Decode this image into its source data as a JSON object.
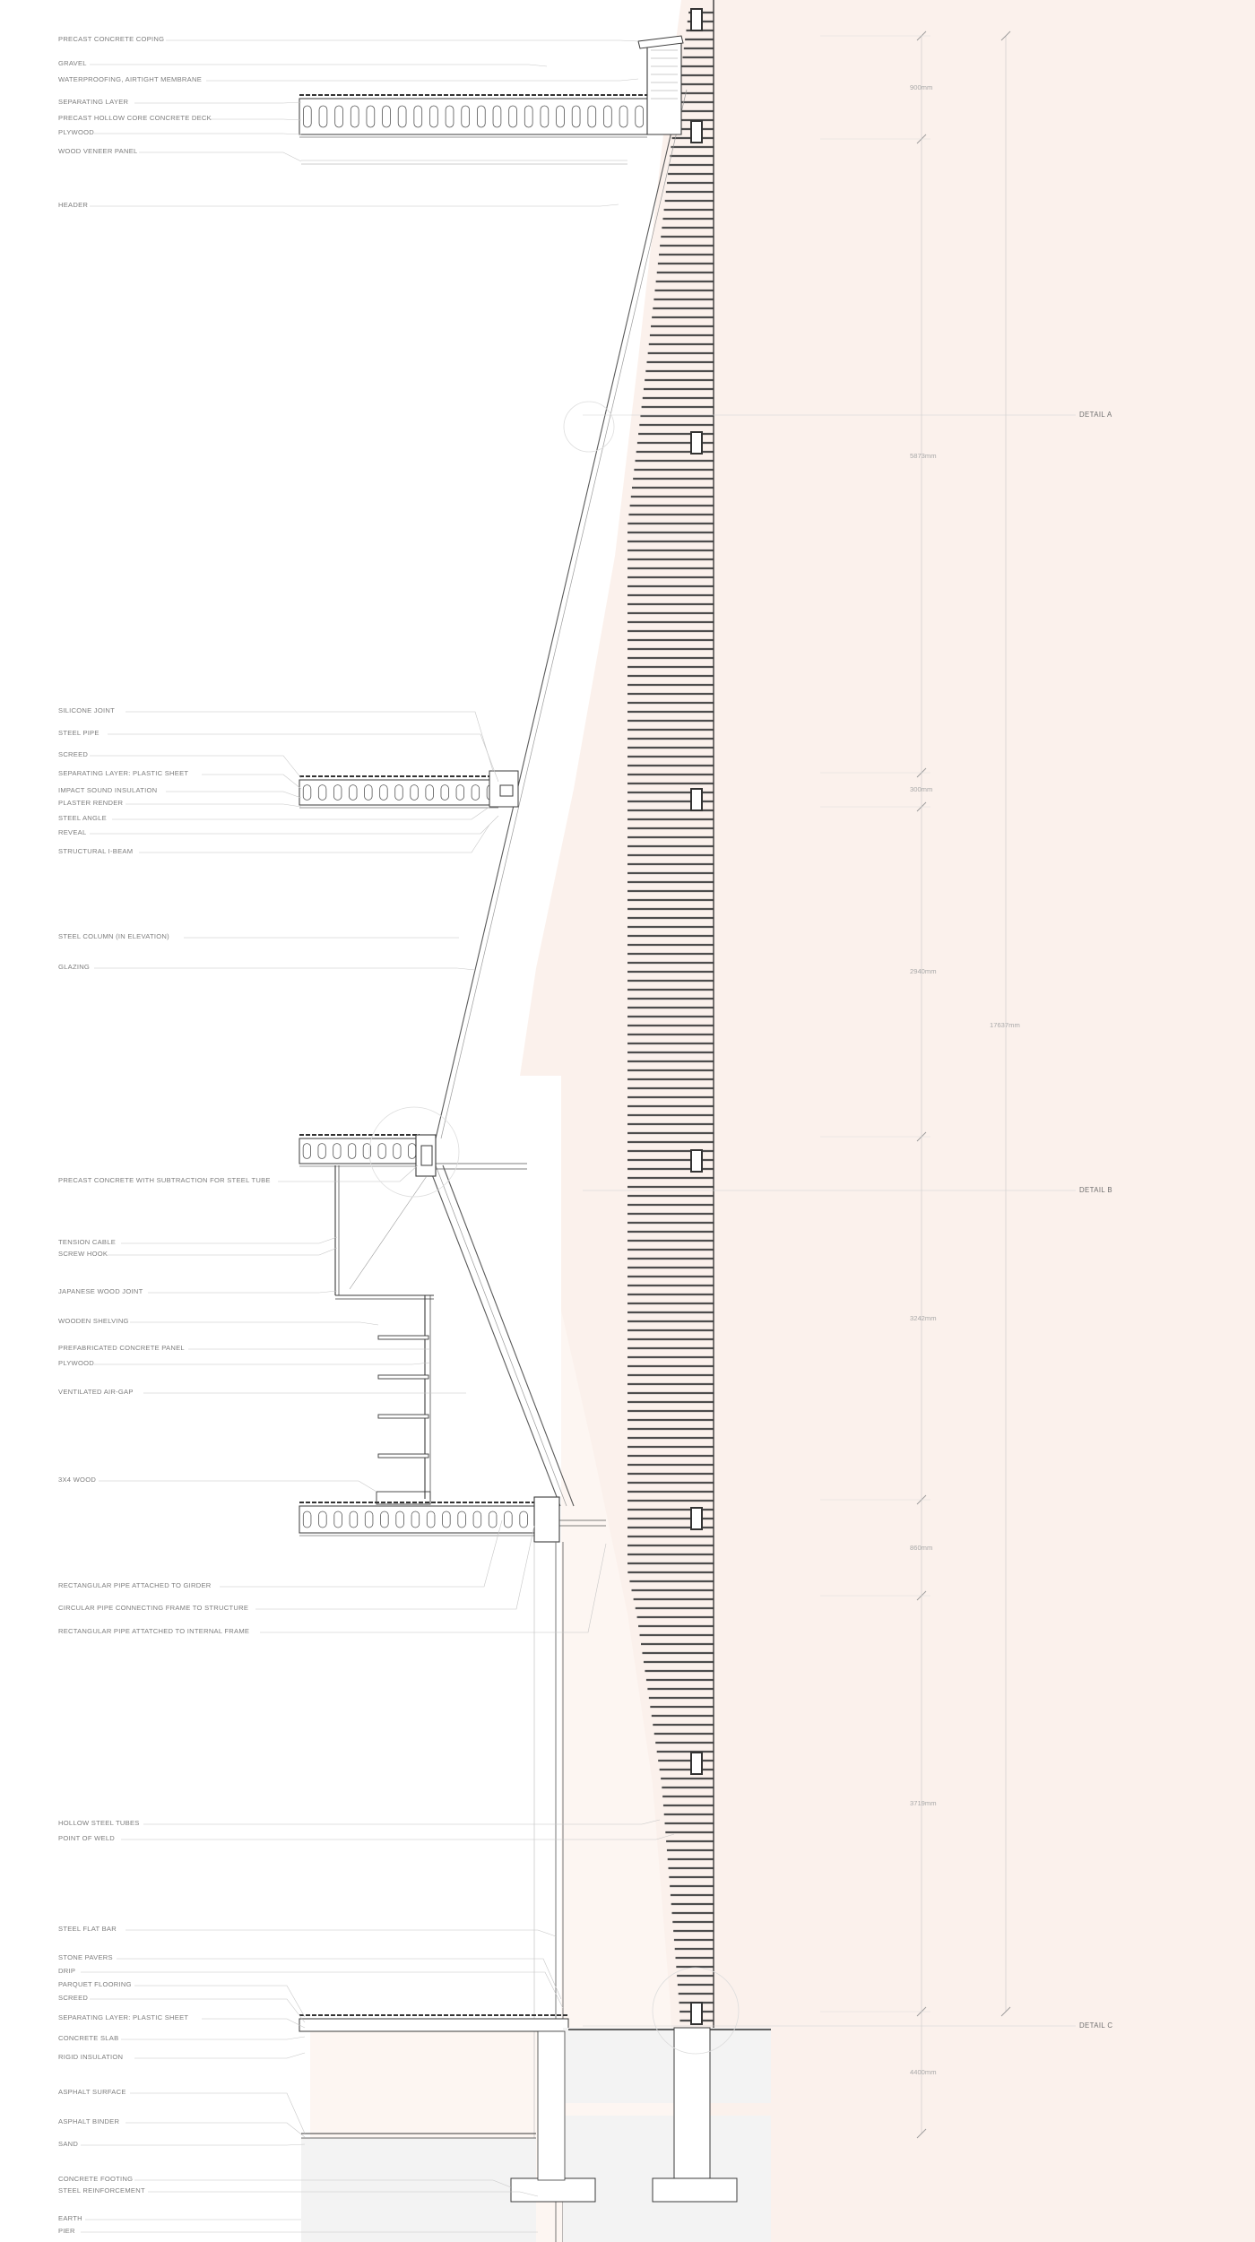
{
  "colors": {
    "facade_fill": "#fbf1ec",
    "line": "#3b3b3b",
    "leader": "#c6c6c6",
    "label_text": "#7d7d7d",
    "dimension_text": "#a9a9a9",
    "slat": "#4d4d4d"
  },
  "labels": [
    "PRECAST CONCRETE COPING",
    "GRAVEL",
    "WATERPROOFING, AIRTIGHT MEMBRANE",
    "SEPARATING LAYER",
    "PRECAST HOLLOW CORE CONCRETE DECK",
    "PLYWOOD",
    "WOOD VENEER PANEL",
    "HEADER",
    "SILICONE JOINT",
    "STEEL PIPE",
    "SCREED",
    "SEPARATING LAYER: PLASTIC SHEET",
    "IMPACT SOUND INSULATION",
    "PLASTER RENDER",
    "STEEL ANGLE",
    "REVEAL",
    "STRUCTURAL I-BEAM",
    "STEEL COLUMN (IN ELEVATION)",
    "GLAZING",
    "PRECAST CONCRETE WITH SUBTRACTION FOR STEEL TUBE",
    "TENSION CABLE",
    "SCREW HOOK",
    "JAPANESE WOOD JOINT",
    "WOODEN SHELVING",
    "PREFABRICATED CONCRETE PANEL",
    "PLYWOOD",
    "VENTILATED AIR-GAP",
    "3X4 WOOD",
    "RECTANGULAR PIPE ATTACHED TO GIRDER",
    "CIRCULAR PIPE CONNECTING FRAME TO STRUCTURE",
    "RECTANGULAR PIPE ATTATCHED TO INTERNAL FRAME",
    "HOLLOW STEEL TUBES",
    "POINT OF WELD",
    "STEEL FLAT BAR",
    "STONE PAVERS",
    "DRIP",
    "PARQUET FLOORING",
    "SCREED",
    "SEPARATING LAYER: PLASTIC SHEET",
    "CONCRETE SLAB",
    "RIGID INSULATION",
    "ASPHALT SURFACE",
    "ASPHALT BINDER",
    "SAND",
    "CONCRETE FOOTING",
    "STEEL REINFORCEMENT",
    "EARTH",
    "PIER"
  ],
  "dimensions": [
    "900mm",
    "5873mm",
    "300mm",
    "2940mm",
    "3242mm",
    "860mm",
    "3719mm",
    "4400mm",
    "17637mm"
  ],
  "details": [
    "DETAIL A",
    "DETAIL B",
    "DETAIL C"
  ]
}
